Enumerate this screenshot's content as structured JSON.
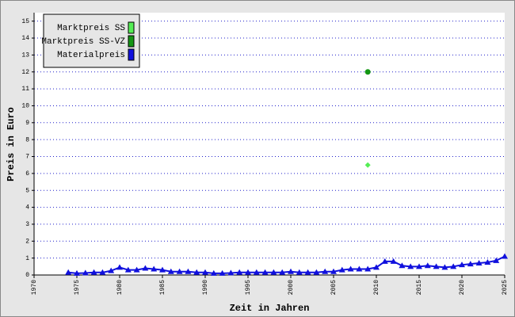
{
  "chart_data": {
    "type": "line",
    "x_label": "Zeit in Jahren",
    "y_label": "Preis in Euro",
    "xlim": [
      1970,
      2025
    ],
    "xticks": [
      1970,
      1975,
      1980,
      1985,
      1990,
      1995,
      2000,
      2005,
      2010,
      2015,
      2020,
      2025
    ],
    "ylim": [
      0,
      15.5
    ],
    "yticks": [
      0,
      1,
      2,
      3,
      4,
      5,
      6,
      7,
      8,
      9,
      10,
      11,
      12,
      13,
      14,
      15
    ],
    "grid": true,
    "legend": "top-left",
    "series": [
      {
        "name": "Marktpreis SS",
        "color": "#55ee55",
        "marker": "diamond",
        "x": [
          2009
        ],
        "values": [
          6.5
        ]
      },
      {
        "name": "Marktpreis SS-VZ",
        "color": "#149614",
        "marker": "circle",
        "x": [
          2009
        ],
        "values": [
          12
        ]
      },
      {
        "name": "Materialpreis",
        "color": "#1010dd",
        "marker": "triangle",
        "x": [
          1974,
          1975,
          1976,
          1977,
          1978,
          1979,
          1980,
          1981,
          1982,
          1983,
          1984,
          1985,
          1986,
          1987,
          1988,
          1989,
          1990,
          1991,
          1992,
          1993,
          1994,
          1995,
          1996,
          1997,
          1998,
          1999,
          2000,
          2001,
          2002,
          2003,
          2004,
          2005,
          2006,
          2007,
          2008,
          2009,
          2010,
          2011,
          2012,
          2013,
          2014,
          2015,
          2016,
          2017,
          2018,
          2019,
          2020,
          2021,
          2022,
          2023,
          2024,
          2025
        ],
        "values": [
          0.15,
          0.1,
          0.12,
          0.15,
          0.15,
          0.25,
          0.45,
          0.3,
          0.3,
          0.4,
          0.35,
          0.3,
          0.2,
          0.2,
          0.2,
          0.15,
          0.15,
          0.1,
          0.1,
          0.12,
          0.15,
          0.15,
          0.15,
          0.15,
          0.15,
          0.15,
          0.2,
          0.15,
          0.15,
          0.15,
          0.2,
          0.2,
          0.3,
          0.35,
          0.35,
          0.35,
          0.45,
          0.8,
          0.8,
          0.55,
          0.5,
          0.5,
          0.55,
          0.5,
          0.45,
          0.5,
          0.6,
          0.65,
          0.7,
          0.75,
          0.85,
          1.1
        ]
      }
    ]
  }
}
